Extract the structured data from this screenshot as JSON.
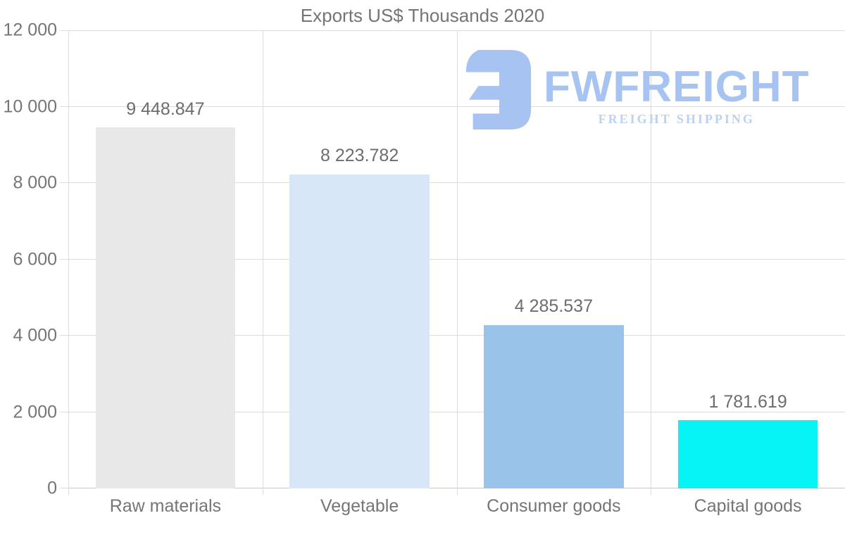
{
  "chart_data": {
    "type": "bar",
    "title": "Exports US$ Thousands 2020",
    "categories": [
      "Raw materials",
      "Vegetable",
      "Consumer goods",
      "Capital goods"
    ],
    "values": [
      9448.847,
      8223.782,
      4285.537,
      1781.619
    ],
    "value_labels": [
      "9 448.847",
      "8 223.782",
      "4 285.537",
      "1 781.619"
    ],
    "bar_colors": [
      "#e8e8e8",
      "#d7e7f8",
      "#9ac3e9",
      "#06f4f4"
    ],
    "xlabel": "",
    "ylabel": "",
    "ylim": [
      0,
      12000
    ],
    "ytick_step": 2000,
    "ytick_labels": [
      "0",
      "2 000",
      "4 000",
      "6 000",
      "8 000",
      "10 000",
      "12 000"
    ],
    "grid": true,
    "legend": false
  },
  "watermark": {
    "name": "FWFREIGHT",
    "tagline": "FREIGHT SHIPPING"
  },
  "colors": {
    "text": "#757575",
    "value_text": "#6d6d6d",
    "grid": "#dcdcdc",
    "axis": "#c8c8c8",
    "brand": "#a6c3f1",
    "brand_light": "#bcd1f3"
  }
}
